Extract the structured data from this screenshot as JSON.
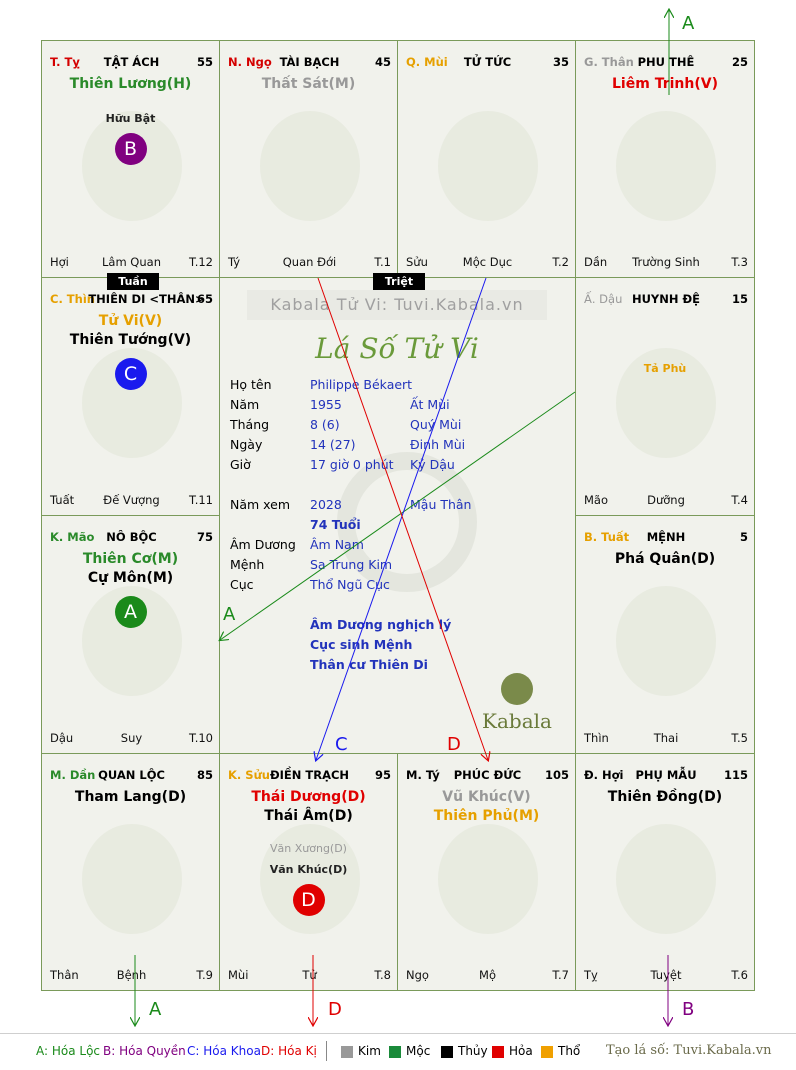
{
  "palaces": [
    {
      "id": "ty",
      "can": "T. Tỵ",
      "can_color": "#d40000",
      "name": "TẬT ÁCH",
      "num": "55",
      "stars": [
        {
          "t": "Thiên Lương(H)",
          "c": "#2a8a2a"
        }
      ],
      "minor": "Hữu Bật",
      "badge": "B",
      "badge_color": "#800080",
      "foot_l": "Hợi",
      "foot_c": "Lâm Quan",
      "foot_r": "T.12"
    },
    {
      "id": "ngo",
      "can": "N. Ngọ",
      "can_color": "#d40000",
      "name": "TÀI BẠCH",
      "num": "45",
      "stars": [
        {
          "t": "Thất Sát(M)",
          "c": "#999999"
        }
      ],
      "foot_l": "Tý",
      "foot_c": "Quan Đới",
      "foot_r": "T.1"
    },
    {
      "id": "mui",
      "can": "Q. Mùi",
      "can_color": "#e6a000",
      "name": "TỬ TỨC",
      "num": "35",
      "stars": [],
      "foot_l": "Sửu",
      "foot_c": "Mộc Dục",
      "foot_r": "T.2"
    },
    {
      "id": "than",
      "can": "G. Thân",
      "can_color": "#999999",
      "name": "PHU THÊ",
      "num": "25",
      "stars": [
        {
          "t": "Liêm Trinh(V)",
          "c": "#e00000"
        }
      ],
      "foot_l": "Dần",
      "foot_c": "Trường Sinh",
      "foot_r": "T.3"
    },
    {
      "id": "thin",
      "can": "C. Thìn",
      "can_color": "#e6a000",
      "name": "THIÊN DI <THÂN>",
      "num": "65",
      "stars": [
        {
          "t": "Tử Vi(V)",
          "c": "#e6a000"
        },
        {
          "t": "Thiên Tướng(V)",
          "c": "#000000"
        }
      ],
      "badge": "C",
      "badge_color": "#1a1aee",
      "foot_l": "Tuất",
      "foot_c": "Đế Vượng",
      "foot_r": "T.11"
    },
    {
      "id": "dau",
      "can": "Ấ. Dậu",
      "can_color": "#999999",
      "name": "HUYNH ĐỆ",
      "num": "15",
      "stars": [],
      "minor_color": "Tả Phù",
      "foot_l": "Mão",
      "foot_c": "Dưỡng",
      "foot_r": "T.4"
    },
    {
      "id": "mao",
      "can": "K. Mão",
      "can_color": "#2a8a2a",
      "name": "NÔ BỘC",
      "num": "75",
      "stars": [
        {
          "t": "Thiên Cơ(M)",
          "c": "#2a8a2a"
        },
        {
          "t": "Cự Môn(M)",
          "c": "#000000"
        }
      ],
      "badge": "A",
      "badge_color": "#1a8a1a",
      "foot_l": "Dậu",
      "foot_c": "Suy",
      "foot_r": "T.10"
    },
    {
      "id": "tuat",
      "can": "B. Tuất",
      "can_color": "#e6a000",
      "name": "MỆNH",
      "num": "5",
      "stars": [
        {
          "t": "Phá Quân(D)",
          "c": "#000000"
        }
      ],
      "foot_l": "Thìn",
      "foot_c": "Thai",
      "foot_r": "T.5"
    },
    {
      "id": "dan",
      "can": "M. Dần",
      "can_color": "#2a8a2a",
      "name": "QUAN LỘC",
      "num": "85",
      "stars": [
        {
          "t": "Tham Lang(D)",
          "c": "#000000"
        }
      ],
      "foot_l": "Thân",
      "foot_c": "Bệnh",
      "foot_r": "T.9"
    },
    {
      "id": "suu",
      "can": "K. Sửu",
      "can_color": "#e6a000",
      "name": "ĐIỀN TRẠCH",
      "num": "95",
      "stars": [
        {
          "t": "Thái Dương(D)",
          "c": "#e00000"
        },
        {
          "t": "Thái Âm(D)",
          "c": "#000000"
        }
      ],
      "minor2": "Văn Xương(D)",
      "minor3": "Văn Khúc(D)",
      "badge": "D",
      "badge_color": "#e00000",
      "foot_l": "Mùi",
      "foot_c": "Tử",
      "foot_r": "T.8"
    },
    {
      "id": "ty2",
      "can": "M. Tý",
      "can_color": "#000000",
      "name": "PHÚC ĐỨC",
      "num": "105",
      "stars": [
        {
          "t": "Vũ Khúc(V)",
          "c": "#999999"
        },
        {
          "t": "Thiên Phủ(M)",
          "c": "#e6a000"
        }
      ],
      "foot_l": "Ngọ",
      "foot_c": "Mộ",
      "foot_r": "T.7"
    },
    {
      "id": "hoi",
      "can": "Đ. Hợi",
      "can_color": "#000000",
      "name": "PHỤ MẪU",
      "num": "115",
      "stars": [
        {
          "t": "Thiên Đồng(D)",
          "c": "#000000"
        }
      ],
      "foot_l": "Tỵ",
      "foot_c": "Tuyệt",
      "foot_r": "T.6"
    }
  ],
  "tags": {
    "tuan": "Tuần",
    "triet": "Triệt"
  },
  "center": {
    "watermark": "Kabala Tử Vi: Tuvi.Kabala.vn",
    "script_title": "Lá Số Tử Vi",
    "rows": [
      {
        "label": "Họ tên",
        "v1": "Philippe Békaert",
        "v2": ""
      },
      {
        "label": "Năm",
        "v1": "1955",
        "v2": "Ất Mùi"
      },
      {
        "label": "Tháng",
        "v1": "8  (6)",
        "v2": "Quý Mùi"
      },
      {
        "label": "Ngày",
        "v1": "14  (27)",
        "v2": "Đinh Mùi"
      },
      {
        "label": "Giờ",
        "v1": "17 giờ 0 phút",
        "v2": "Kỷ Dậu"
      }
    ],
    "nam_xem": {
      "label": "Năm xem",
      "v1": "2028",
      "v2": "Mậu Thân",
      "age": "74 Tuổi"
    },
    "rows2": [
      {
        "label": "Âm Dương",
        "v1": "Âm Nam"
      },
      {
        "label": "Mệnh",
        "v1": "Sa Trung Kim"
      },
      {
        "label": "Cục",
        "v1": "Thổ Ngũ Cục"
      }
    ],
    "notes": [
      "Âm Dương nghịch lý",
      "Cục sinh Mệnh",
      "Thân cư Thiên Di"
    ],
    "logo": "Kabala"
  },
  "arrow_labels": {
    "a_top": "A",
    "a_mid": "A",
    "c": "C",
    "d": "D",
    "a_bot": "A",
    "d_bot": "D",
    "b_bot": "B"
  },
  "legend": {
    "hoa_loc": "A: Hóa Lộc",
    "hoa_quyen": "B: Hóa Quyền",
    "hoa_khoa": "C: Hóa Khoa",
    "hoa_ki": "D: Hóa Kị",
    "kim": "Kim",
    "moc": "Mộc",
    "thuy": "Thủy",
    "hoa": "Hỏa",
    "tho": "Thổ",
    "credit": "Tạo lá số: Tuvi.Kabala.vn",
    "colors": {
      "kim": "#999999",
      "moc": "#1a8a3a",
      "thuy": "#000000",
      "hoa": "#e00000",
      "tho": "#f0a000"
    }
  }
}
